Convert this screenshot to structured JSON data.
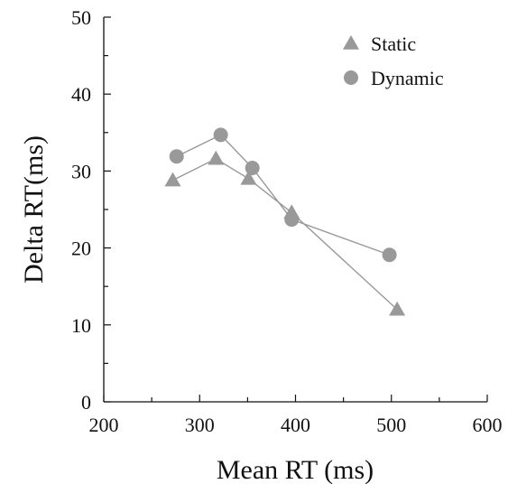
{
  "chart_data": {
    "type": "line",
    "title": "",
    "xlabel": "Mean RT (ms)",
    "ylabel": "Delta RT(ms)",
    "xlim": [
      200,
      600
    ],
    "ylim": [
      0,
      50
    ],
    "xticks": [
      200,
      300,
      400,
      500,
      600
    ],
    "yticks": [
      0,
      10,
      20,
      30,
      40,
      50
    ],
    "grid": false,
    "legend_position": "top-right",
    "series": [
      {
        "name": "Static",
        "marker": "triangle",
        "color": "#999999",
        "x": [
          272,
          317,
          351,
          396,
          506
        ],
        "y": [
          28.8,
          31.6,
          29.0,
          24.6,
          12.0
        ]
      },
      {
        "name": "Dynamic",
        "marker": "circle",
        "color": "#999999",
        "x": [
          276,
          322,
          355,
          396,
          498
        ],
        "y": [
          31.9,
          34.7,
          30.4,
          23.7,
          19.1
        ]
      }
    ]
  }
}
